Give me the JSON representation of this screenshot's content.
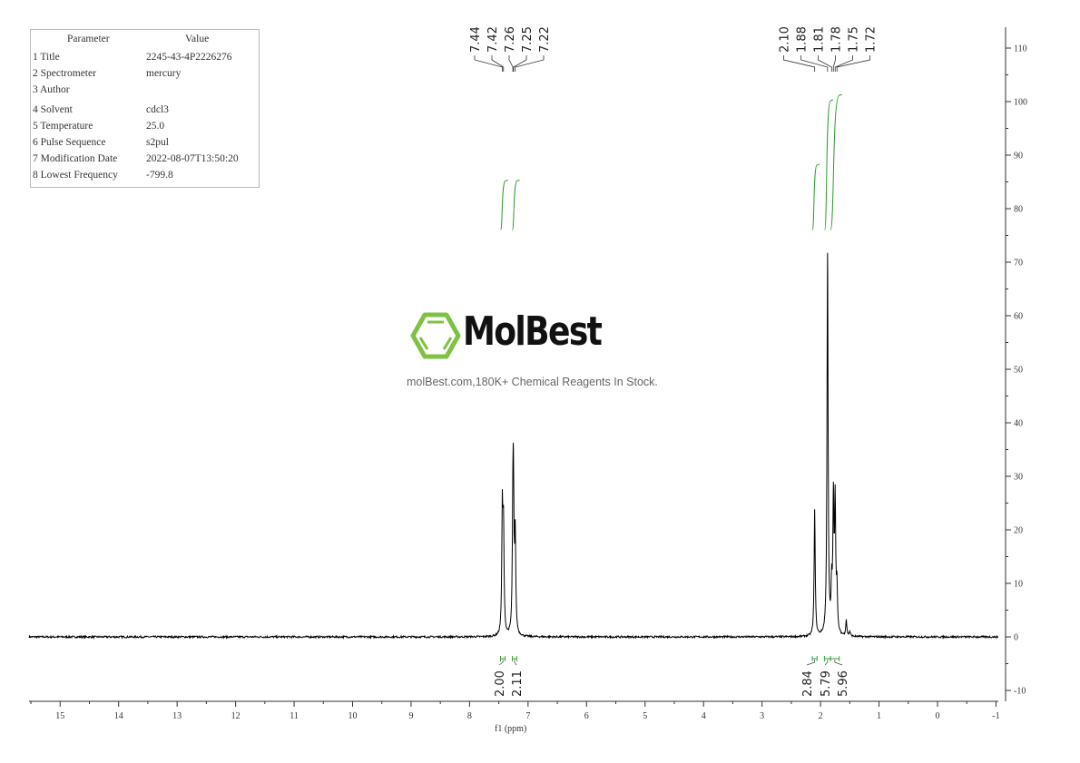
{
  "parameters": {
    "header": {
      "parameter": "Parameter",
      "value": "Value"
    },
    "rows": [
      {
        "name": "1 Title",
        "value": "2245-43-4P2226276"
      },
      {
        "name": "2 Spectrometer",
        "value": "mercury"
      },
      {
        "name": "3 Author",
        "value": ""
      },
      {
        "name": "4 Solvent",
        "value": "cdcl3"
      },
      {
        "name": "5 Temperature",
        "value": "25.0"
      },
      {
        "name": "6 Pulse Sequence",
        "value": "s2pul"
      },
      {
        "name": "7 Modification Date",
        "value": "2022-08-07T13:50:20"
      },
      {
        "name": "8 Lowest Frequency",
        "value": "-799.8"
      }
    ]
  },
  "watermark": {
    "brand": "MolBest",
    "tagline": "molBest.com,180K+ Chemical Reagents In Stock.",
    "logo_color": "#7dc242"
  },
  "chart_data": {
    "type": "line",
    "title": "",
    "xlabel": "f1 (ppm)",
    "ylabel": "",
    "xlim": [
      15.6,
      -1.1
    ],
    "ylim": [
      -12,
      113
    ],
    "x_ticks": [
      "15",
      "14",
      "13",
      "12",
      "11",
      "10",
      "9",
      "8",
      "7",
      "6",
      "5",
      "4",
      "3",
      "2",
      "1",
      "0",
      "-1"
    ],
    "y_ticks": [
      "110",
      "100",
      "90",
      "80",
      "70",
      "60",
      "50",
      "40",
      "30",
      "20",
      "10",
      "0",
      "-10"
    ],
    "x_reversed": true,
    "grid": false,
    "colors": {
      "spectrum": "#000000",
      "integral": "#2e9b2e",
      "axis": "#333333"
    },
    "peaks": [
      {
        "ppm": 7.44,
        "intensity": 23
      },
      {
        "ppm": 7.42,
        "intensity": 19
      },
      {
        "ppm": 7.26,
        "intensity": 18
      },
      {
        "ppm": 7.25,
        "intensity": 23
      },
      {
        "ppm": 7.22,
        "intensity": 18
      },
      {
        "ppm": 2.1,
        "intensity": 23.5
      },
      {
        "ppm": 1.88,
        "intensity": 71
      },
      {
        "ppm": 1.81,
        "intensity": 8
      },
      {
        "ppm": 1.78,
        "intensity": 24
      },
      {
        "ppm": 1.75,
        "intensity": 24
      },
      {
        "ppm": 1.72,
        "intensity": 8
      },
      {
        "ppm": 1.56,
        "intensity": 3
      },
      {
        "ppm": 1.5,
        "intensity": 0.8
      }
    ],
    "peak_labels": [
      {
        "group": [
          "7.44",
          "7.42",
          "7.26",
          "7.25",
          "7.22"
        ]
      },
      {
        "group": [
          "2.10",
          "1.88",
          "1.81",
          "1.78",
          "1.75",
          "1.72"
        ]
      }
    ],
    "integrals": [
      {
        "from": 7.47,
        "to": 7.39,
        "value": "2.00",
        "curve_start": 76,
        "curve_end": 85
      },
      {
        "from": 7.27,
        "to": 7.19,
        "value": "2.11",
        "curve_start": 76,
        "curve_end": 85
      },
      {
        "from": 2.14,
        "to": 2.06,
        "value": "2.84",
        "curve_start": 76,
        "curve_end": 88
      },
      {
        "from": 1.93,
        "to": 1.83,
        "value": "5.79",
        "curve_start": 76,
        "curve_end": 100
      },
      {
        "from": 1.83,
        "to": 1.68,
        "value": "5.96",
        "curve_start": 76,
        "curve_end": 101
      }
    ]
  }
}
